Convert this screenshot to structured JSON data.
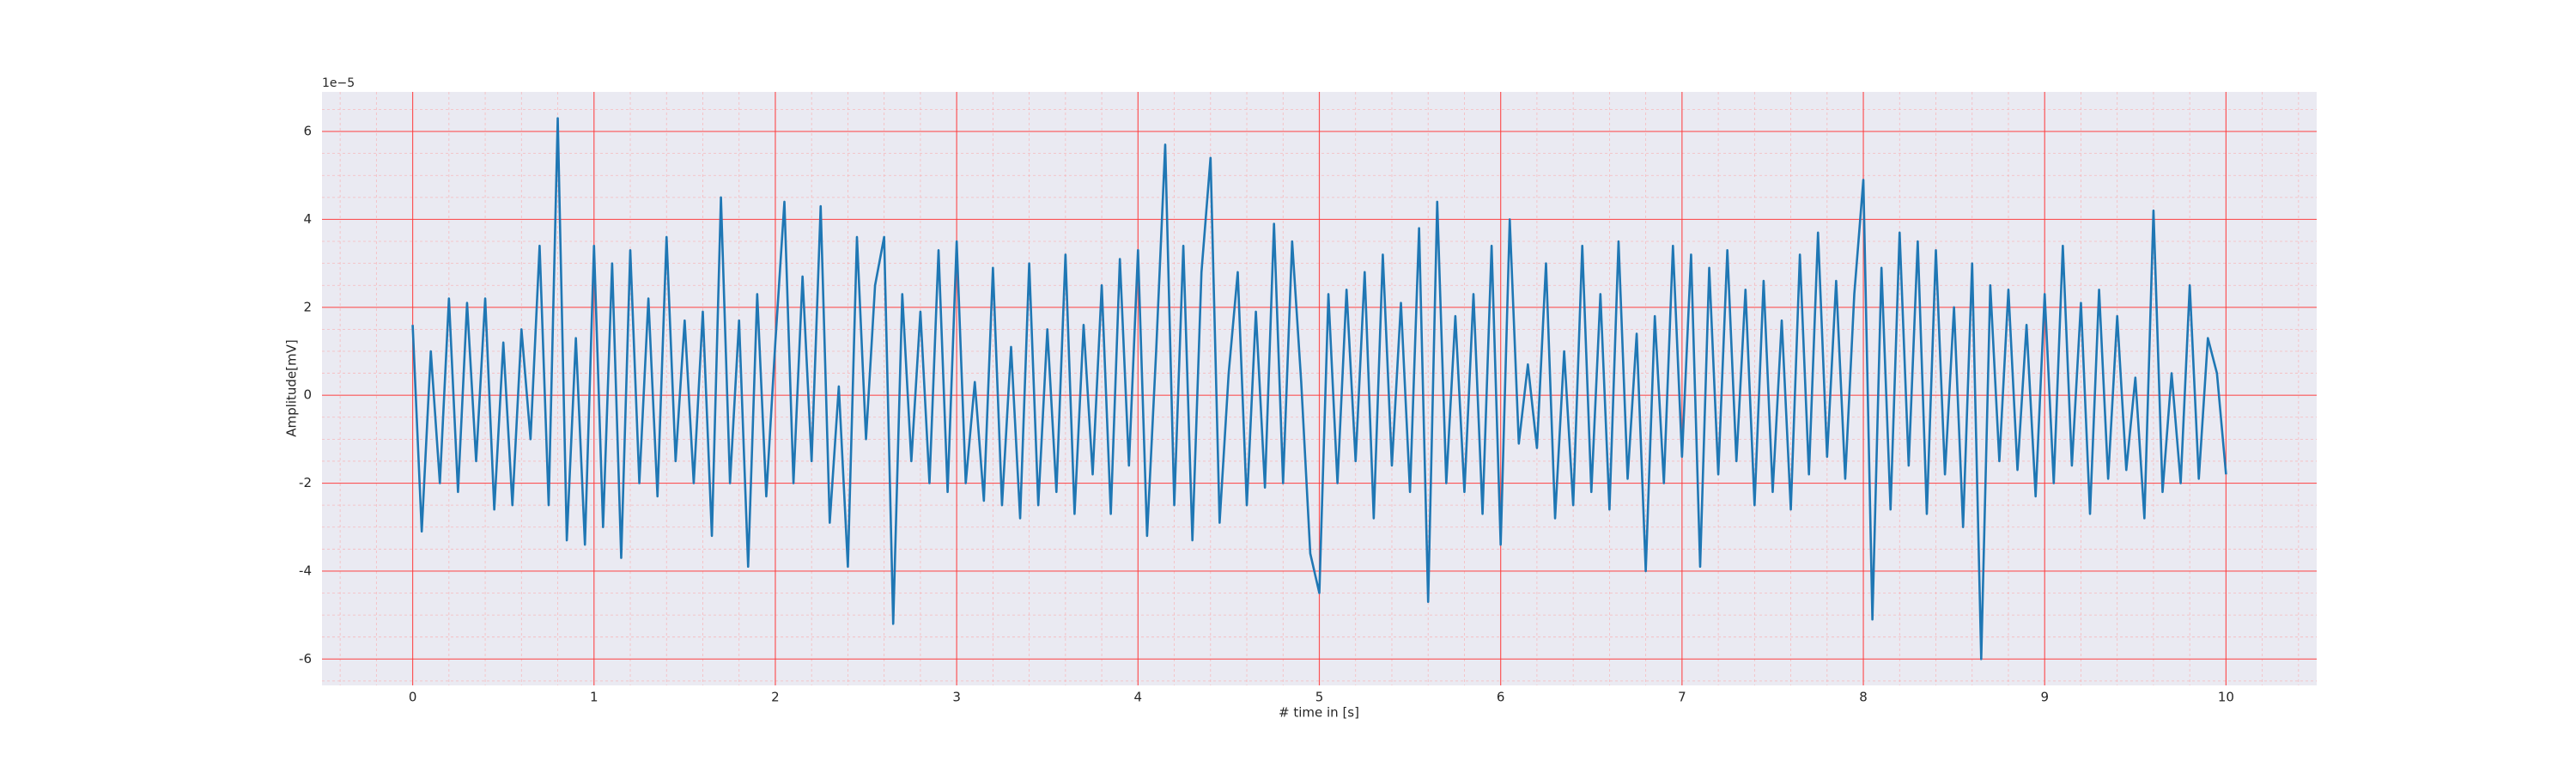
{
  "chart_data": {
    "type": "line",
    "xlabel": "# time in [s]",
    "ylabel": "Amplitude[mV]",
    "offset_label": "1e−5",
    "color": "#1f77b4",
    "grid": true,
    "minor_grid": true,
    "xlim": [
      -0.5,
      10.5
    ],
    "ylim": [
      -6.6,
      6.9
    ],
    "xticks": [
      0,
      1,
      2,
      3,
      4,
      5,
      6,
      7,
      8,
      9,
      10
    ],
    "yticks": [
      -6,
      -4,
      -2,
      0,
      2,
      4,
      6
    ],
    "xminorticks": [
      -0.4,
      -0.2,
      0.2,
      0.4,
      0.6,
      0.8,
      1.2,
      1.4,
      1.6,
      1.8,
      2.2,
      2.4,
      2.6,
      2.8,
      3.2,
      3.4,
      3.6,
      3.8,
      4.2,
      4.4,
      4.6,
      4.8,
      5.2,
      5.4,
      5.6,
      5.8,
      6.2,
      6.4,
      6.6,
      6.8,
      7.2,
      7.4,
      7.6,
      7.8,
      8.2,
      8.4,
      8.6,
      8.8,
      9.2,
      9.4,
      9.6,
      9.8,
      10.2,
      10.4
    ],
    "yminorticks": [
      -6.5,
      -5.5,
      -5,
      -4.5,
      -3.5,
      -3,
      -2.5,
      -1.5,
      -1,
      -0.5,
      0.5,
      1,
      1.5,
      2.5,
      3,
      3.5,
      4.5,
      5,
      5.5,
      6.5
    ],
    "x": [
      0,
      0.05,
      0.1,
      0.15,
      0.2,
      0.25,
      0.3,
      0.35,
      0.4,
      0.45,
      0.5,
      0.55,
      0.6,
      0.65,
      0.7,
      0.75,
      0.8,
      0.85,
      0.9,
      0.95,
      1,
      1.05,
      1.1,
      1.15,
      1.2,
      1.25,
      1.3,
      1.35,
      1.4,
      1.45,
      1.5,
      1.55,
      1.6,
      1.65,
      1.7,
      1.75,
      1.8,
      1.85,
      1.9,
      1.95,
      2,
      2.05,
      2.1,
      2.15,
      2.2,
      2.25,
      2.3,
      2.35,
      2.4,
      2.45,
      2.5,
      2.55,
      2.6,
      2.65,
      2.7,
      2.75,
      2.8,
      2.85,
      2.9,
      2.95,
      3,
      3.05,
      3.1,
      3.15,
      3.2,
      3.25,
      3.3,
      3.35,
      3.4,
      3.45,
      3.5,
      3.55,
      3.6,
      3.65,
      3.7,
      3.75,
      3.8,
      3.85,
      3.9,
      3.95,
      4,
      4.05,
      4.1,
      4.15,
      4.2,
      4.25,
      4.3,
      4.35,
      4.4,
      4.45,
      4.5,
      4.55,
      4.6,
      4.65,
      4.7,
      4.75,
      4.8,
      4.85,
      4.9,
      4.95,
      5,
      5.05,
      5.1,
      5.15,
      5.2,
      5.25,
      5.3,
      5.35,
      5.4,
      5.45,
      5.5,
      5.55,
      5.6,
      5.65,
      5.7,
      5.75,
      5.8,
      5.85,
      5.9,
      5.95,
      6,
      6.05,
      6.1,
      6.15,
      6.2,
      6.25,
      6.3,
      6.35,
      6.4,
      6.45,
      6.5,
      6.55,
      6.6,
      6.65,
      6.7,
      6.75,
      6.8,
      6.85,
      6.9,
      6.95,
      7,
      7.05,
      7.1,
      7.15,
      7.2,
      7.25,
      7.3,
      7.35,
      7.4,
      7.45,
      7.5,
      7.55,
      7.6,
      7.65,
      7.7,
      7.75,
      7.8,
      7.85,
      7.9,
      7.95,
      8,
      8.05,
      8.1,
      8.15,
      8.2,
      8.25,
      8.3,
      8.35,
      8.4,
      8.45,
      8.5,
      8.55,
      8.6,
      8.65,
      8.7,
      8.75,
      8.8,
      8.85,
      8.9,
      8.95,
      9,
      9.05,
      9.1,
      9.15,
      9.2,
      9.25,
      9.3,
      9.35,
      9.4,
      9.45,
      9.5,
      9.55,
      9.6,
      9.65,
      9.7,
      9.75,
      9.8,
      9.85,
      9.9,
      9.95,
      10
    ],
    "values": [
      1.6,
      -3.1,
      1.0,
      -2.0,
      2.2,
      -2.2,
      2.1,
      -1.5,
      2.2,
      -2.6,
      1.2,
      -2.5,
      1.5,
      -1.0,
      3.4,
      -2.5,
      6.3,
      -3.3,
      1.3,
      -3.4,
      3.4,
      -3.0,
      3.0,
      -3.7,
      3.3,
      -2.0,
      2.2,
      -2.3,
      3.6,
      -1.5,
      1.7,
      -2.0,
      1.9,
      -3.2,
      4.5,
      -2.0,
      1.7,
      -3.9,
      2.3,
      -2.3,
      1.2,
      4.4,
      -2.0,
      2.7,
      -1.5,
      4.3,
      -2.9,
      0.2,
      -3.9,
      3.6,
      -1.0,
      2.5,
      3.6,
      -5.2,
      2.3,
      -1.5,
      1.9,
      -2.0,
      3.3,
      -2.2,
      3.5,
      -2.0,
      0.3,
      -2.4,
      2.9,
      -2.5,
      1.1,
      -2.8,
      3.0,
      -2.5,
      1.5,
      -2.2,
      3.2,
      -2.7,
      1.6,
      -1.8,
      2.5,
      -2.7,
      3.1,
      -1.6,
      3.3,
      -3.2,
      1.0,
      5.7,
      -2.5,
      3.4,
      -3.3,
      2.8,
      5.4,
      -2.9,
      0.5,
      2.8,
      -2.5,
      1.9,
      -2.1,
      3.9,
      -2.0,
      3.5,
      0.3,
      -3.6,
      -4.5,
      2.3,
      -2.0,
      2.4,
      -1.5,
      2.8,
      -2.8,
      3.2,
      -1.6,
      2.1,
      -2.2,
      3.8,
      -4.7,
      4.4,
      -2.0,
      1.8,
      -2.2,
      2.3,
      -2.7,
      3.4,
      -3.4,
      4.0,
      -1.1,
      0.7,
      -1.2,
      3.0,
      -2.8,
      1.0,
      -2.5,
      3.4,
      -2.2,
      2.3,
      -2.6,
      3.5,
      -1.9,
      1.4,
      -4.0,
      1.8,
      -2.0,
      3.4,
      -1.4,
      3.2,
      -3.9,
      2.9,
      -1.8,
      3.3,
      -1.5,
      2.4,
      -2.5,
      2.6,
      -2.2,
      1.7,
      -2.6,
      3.2,
      -1.8,
      3.7,
      -1.4,
      2.6,
      -1.9,
      2.3,
      4.9,
      -5.1,
      2.9,
      -2.6,
      3.7,
      -1.6,
      3.5,
      -2.7,
      3.3,
      -1.8,
      2.0,
      -3.0,
      3.0,
      -6.0,
      2.5,
      -1.5,
      2.4,
      -1.7,
      1.6,
      -2.3,
      2.3,
      -2.0,
      3.4,
      -1.6,
      2.1,
      -2.7,
      2.4,
      -1.9,
      1.8,
      -1.7,
      0.4,
      -2.8,
      4.2,
      -2.2,
      0.5,
      -2.0,
      2.5,
      -1.9,
      1.3,
      0.5,
      -1.8
    ]
  }
}
